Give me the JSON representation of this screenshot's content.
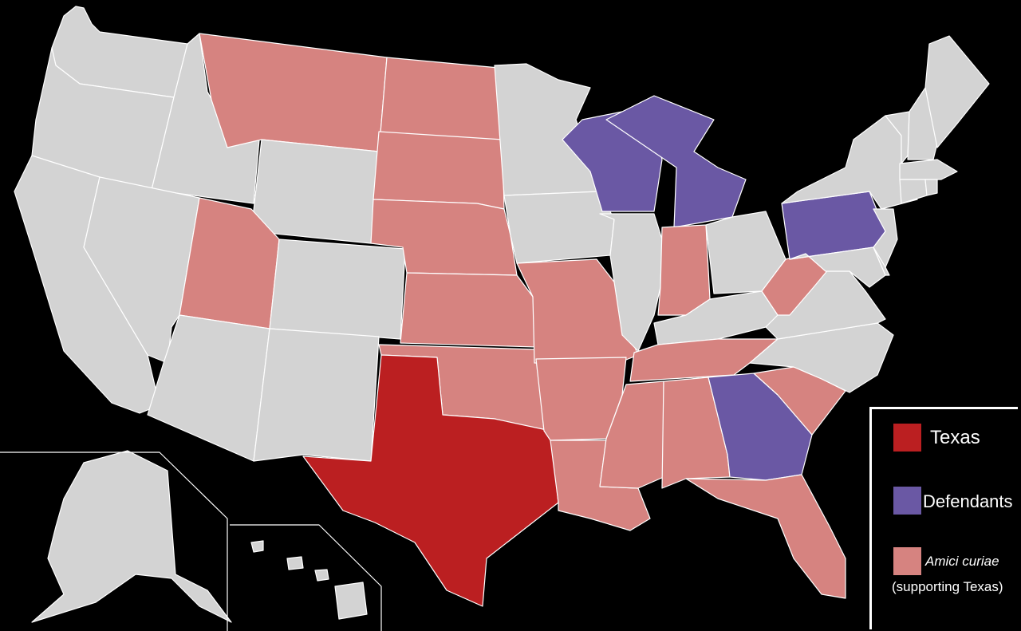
{
  "colors": {
    "background": "#000000",
    "texas": "#bb1f21",
    "defendants": "#6a58a4",
    "amici": "#d68380",
    "other": "#d3d3d3",
    "border": "#ffffff"
  },
  "legend": {
    "texas": "Texas",
    "defendants": "Defendants",
    "amici": "Amici curiae",
    "amici_note": "(supporting Texas)"
  },
  "states": [
    {
      "name": "WA",
      "group": "other"
    },
    {
      "name": "OR",
      "group": "other"
    },
    {
      "name": "CA",
      "group": "other"
    },
    {
      "name": "ID",
      "group": "other"
    },
    {
      "name": "NV",
      "group": "other"
    },
    {
      "name": "MT",
      "group": "amici"
    },
    {
      "name": "WY",
      "group": "other"
    },
    {
      "name": "UT",
      "group": "amici"
    },
    {
      "name": "CO",
      "group": "other"
    },
    {
      "name": "AZ",
      "group": "other"
    },
    {
      "name": "NM",
      "group": "other"
    },
    {
      "name": "ND",
      "group": "amici"
    },
    {
      "name": "SD",
      "group": "amici"
    },
    {
      "name": "NE",
      "group": "amici"
    },
    {
      "name": "KS",
      "group": "amici"
    },
    {
      "name": "OK",
      "group": "amici"
    },
    {
      "name": "TX",
      "group": "texas"
    },
    {
      "name": "MN",
      "group": "other"
    },
    {
      "name": "IA",
      "group": "other"
    },
    {
      "name": "MO",
      "group": "amici"
    },
    {
      "name": "AR",
      "group": "amici"
    },
    {
      "name": "LA",
      "group": "amici"
    },
    {
      "name": "WI",
      "group": "defendants"
    },
    {
      "name": "IL",
      "group": "other"
    },
    {
      "name": "MI",
      "group": "defendants"
    },
    {
      "name": "IN",
      "group": "amici"
    },
    {
      "name": "OH",
      "group": "other"
    },
    {
      "name": "KY",
      "group": "other"
    },
    {
      "name": "TN",
      "group": "amici"
    },
    {
      "name": "MS",
      "group": "amici"
    },
    {
      "name": "AL",
      "group": "amici"
    },
    {
      "name": "GA",
      "group": "defendants"
    },
    {
      "name": "FL",
      "group": "amici"
    },
    {
      "name": "SC",
      "group": "amici"
    },
    {
      "name": "NC",
      "group": "other"
    },
    {
      "name": "VA",
      "group": "other"
    },
    {
      "name": "WV",
      "group": "amici"
    },
    {
      "name": "PA",
      "group": "defendants"
    },
    {
      "name": "NY",
      "group": "other"
    },
    {
      "name": "NJ",
      "group": "other"
    },
    {
      "name": "MD",
      "group": "other"
    },
    {
      "name": "DE",
      "group": "other"
    },
    {
      "name": "VT",
      "group": "other"
    },
    {
      "name": "NH",
      "group": "other"
    },
    {
      "name": "ME",
      "group": "other"
    },
    {
      "name": "MA",
      "group": "other"
    },
    {
      "name": "CT",
      "group": "other"
    },
    {
      "name": "RI",
      "group": "other"
    },
    {
      "name": "AK",
      "group": "other"
    },
    {
      "name": "HI",
      "group": "other"
    }
  ]
}
